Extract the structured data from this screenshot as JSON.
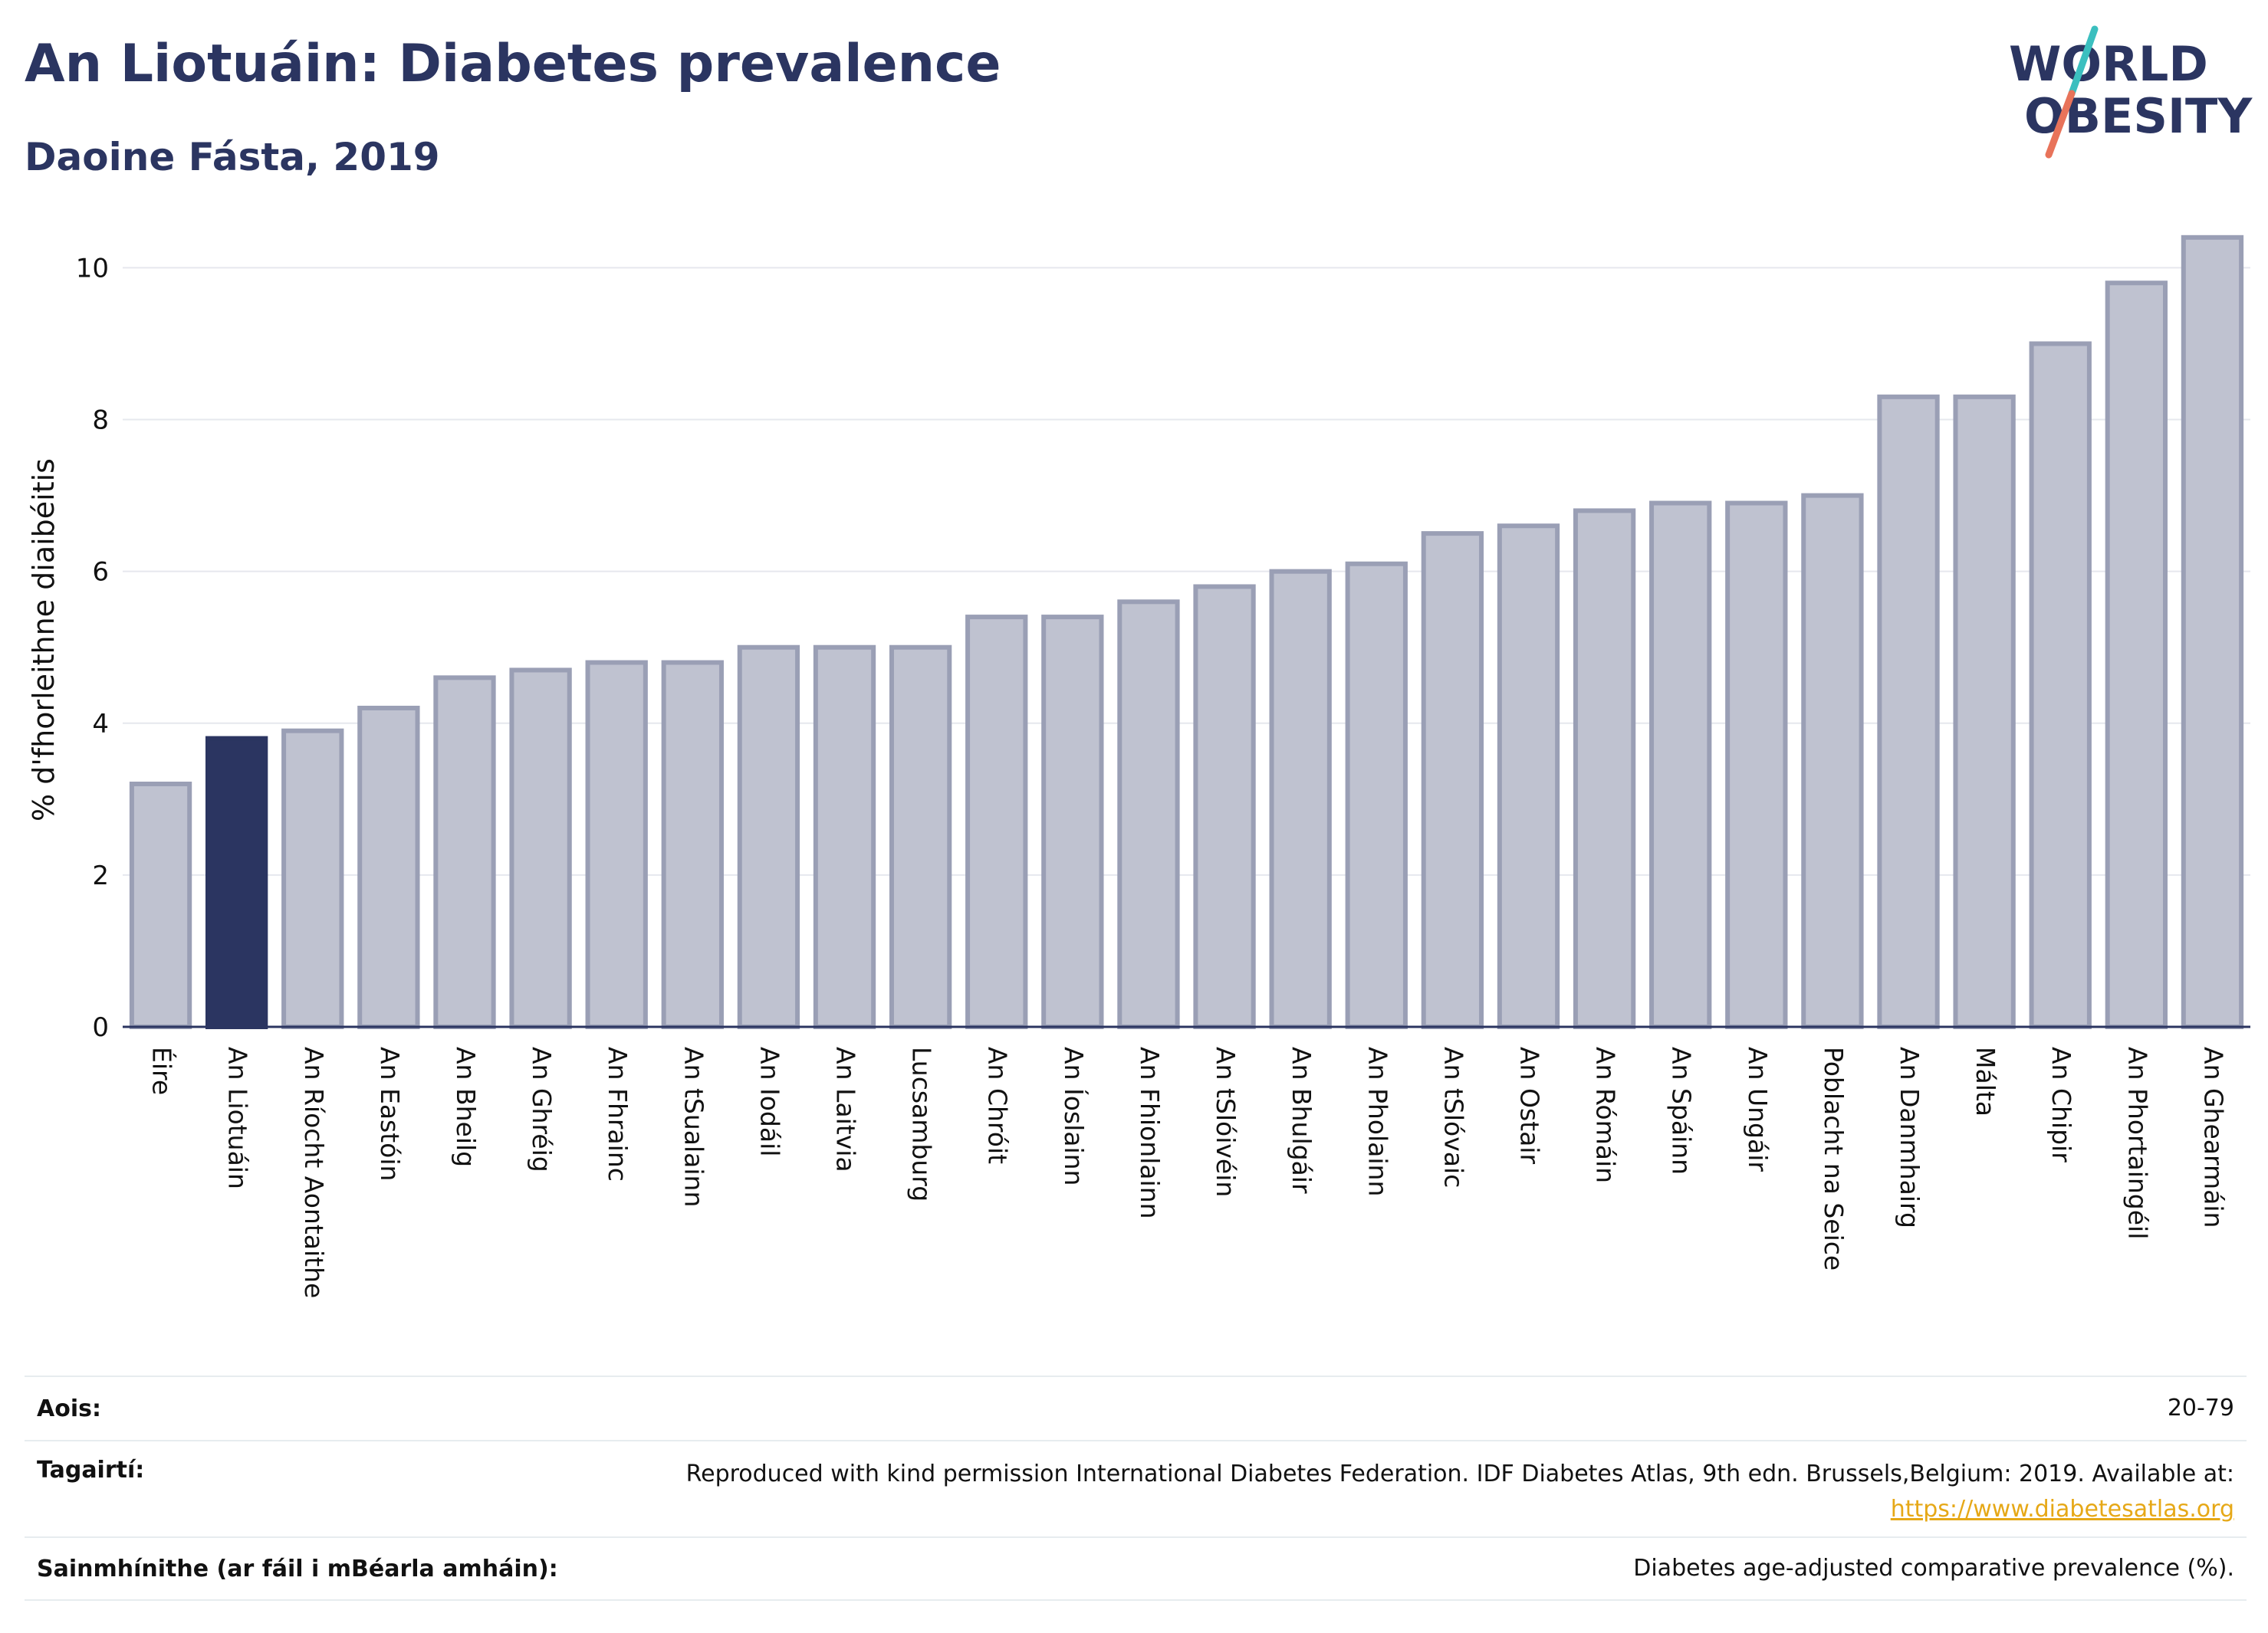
{
  "header": {
    "title": "An Liotuáin: Diabetes prevalence",
    "subtitle": "Daoine Fásta, 2019"
  },
  "logo": {
    "line1": "WORLD",
    "line2": "OBESITY",
    "colors": {
      "text": "#2b3561",
      "slash_teal": "#3bbfbf",
      "slash_coral": "#e8735a"
    }
  },
  "chart_data": {
    "type": "bar",
    "ylabel": "% d'fhorleithne diaibéitis",
    "ylim": [
      0,
      10.6
    ],
    "yticks": [
      0,
      2,
      4,
      6,
      8,
      10
    ],
    "grid": true,
    "highlight": "An Liotuáin",
    "colors": {
      "bar": "#bfc2d0",
      "bar_border": "#9a9fb5",
      "highlight": "#2b3561",
      "grid": "#e6e8ee",
      "axis": "#2b3561"
    },
    "categories": [
      "Éire",
      "An Liotuáin",
      "An Ríocht Aontaithe",
      "An Eastóin",
      "An Bheilg",
      "An Ghréig",
      "An Fhrainc",
      "An tSualainn",
      "An Iodáil",
      "An Laitvia",
      "Lucsamburg",
      "An Chróit",
      "An Íoslainn",
      "An Fhionlainn",
      "An tSlóivéin",
      "An Bhulgáir",
      "An Pholainn",
      "An tSlóvaic",
      "An Ostair",
      "An Rómáin",
      "An Spáinn",
      "An Ungáir",
      "Poblacht na Seice",
      "An Danmhairg",
      "Málta",
      "An Chipir",
      "An Phortaingéil",
      "An Ghearmáin"
    ],
    "values": [
      3.2,
      3.8,
      3.9,
      4.2,
      4.6,
      4.7,
      4.8,
      4.8,
      5.0,
      5.0,
      5.0,
      5.4,
      5.4,
      5.6,
      5.8,
      6.0,
      6.1,
      6.5,
      6.6,
      6.8,
      6.9,
      6.9,
      7.0,
      8.3,
      8.3,
      9.0,
      9.8,
      10.4
    ]
  },
  "info": {
    "age_label": "Aois:",
    "age_value": "20-79",
    "ref_label": "Tagairtí:",
    "ref_text": "Reproduced with kind permission International Diabetes Federation. IDF Diabetes Atlas, 9th edn. Brussels,Belgium: 2019. Available at:",
    "ref_link": "https://www.diabetesatlas.org",
    "def_label": "Sainmhínithe (ar fáil i mBéarla amháin):",
    "def_value": "Diabetes age-adjusted comparative prevalence (%)."
  }
}
